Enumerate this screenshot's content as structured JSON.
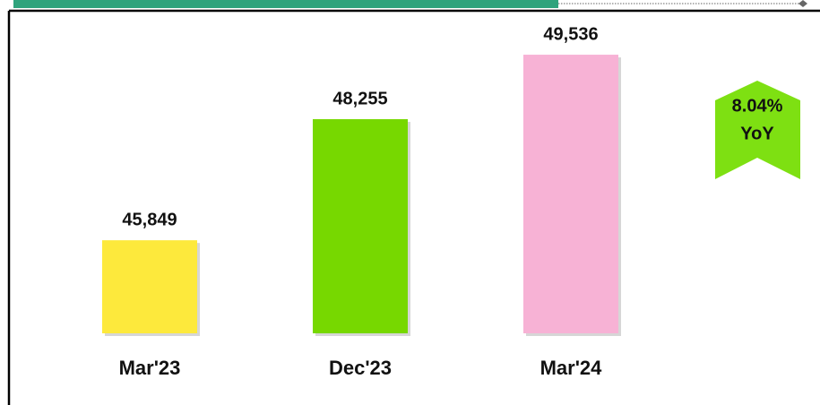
{
  "chart_data": {
    "type": "bar",
    "categories": [
      "Mar'23",
      "Dec'23",
      "Mar'24"
    ],
    "values": [
      45849,
      48255,
      49536
    ],
    "value_labels": [
      "45,849",
      "48,255",
      "49,536"
    ],
    "colors": [
      "#fde93c",
      "#77d800",
      "#f7b2d5"
    ],
    "ylim": [
      44000,
      50000
    ],
    "annotation": {
      "lines": [
        "8.04%",
        "YoY"
      ],
      "color": "#7ee012"
    }
  }
}
